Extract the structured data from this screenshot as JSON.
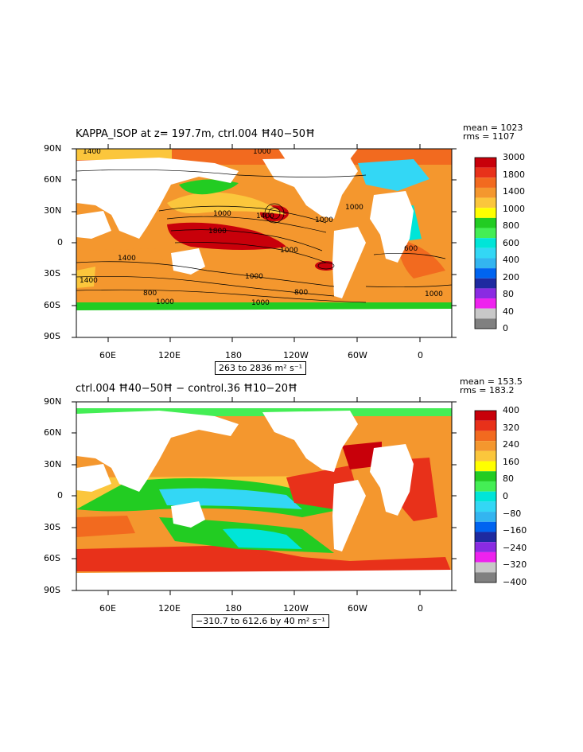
{
  "panels": [
    {
      "title": "KAPPA_ISOP at z= 197.7m, ctrl.004 Ħ40−50Ħ",
      "stats": {
        "mean": "mean = 1023",
        "rms": "rms = 1107"
      },
      "range_label": "263 to 2836 m² s⁻¹",
      "colorbar": {
        "labels": [
          "3000",
          "1800",
          "1400",
          "1000",
          "800",
          "600",
          "400",
          "200",
          "80",
          "40",
          "0"
        ],
        "colors": [
          "#c8000a",
          "#e8311a",
          "#f26a1f",
          "#f4972e",
          "#fbc63c",
          "#ffff00",
          "#22cc22",
          "#44ee55",
          "#00e5d8",
          "#33d7f5",
          "#33b5f0",
          "#0064f0",
          "#1e2aa0",
          "#8a2be2",
          "#ee22ee",
          "#c8c8c8",
          "#808080"
        ]
      }
    },
    {
      "title": "ctrl.004 Ħ40−50Ħ − control.36 Ħ10−20Ħ",
      "stats": {
        "mean": "mean = 153.5",
        "rms": "rms = 183.2"
      },
      "range_label": "−310.7 to 612.6 by 40 m² s⁻¹",
      "colorbar": {
        "labels": [
          "400",
          "320",
          "240",
          "160",
          "80",
          "0",
          "−80",
          "−160",
          "−240",
          "−320",
          "−400"
        ],
        "colors": [
          "#c8000a",
          "#e8311a",
          "#f26a1f",
          "#f4972e",
          "#fbc63c",
          "#ffff00",
          "#22cc22",
          "#44ee55",
          "#00e5d8",
          "#33d7f5",
          "#33b5f0",
          "#0064f0",
          "#1e2aa0",
          "#8a2be2",
          "#ee22ee",
          "#c8c8c8",
          "#808080"
        ]
      }
    }
  ],
  "axes": {
    "lat_labels": [
      "90N",
      "60N",
      "30N",
      "0",
      "30S",
      "60S",
      "90S"
    ],
    "lon_labels": [
      "60E",
      "120E",
      "180",
      "120W",
      "60W",
      "0"
    ]
  },
  "contour_labels": [
    "1400",
    "1000",
    "1400",
    "1800",
    "1400",
    "1000",
    "1000",
    "1000",
    "1000",
    "600",
    "1400",
    "800",
    "1000",
    "800",
    "1000",
    "1000",
    "1000"
  ]
}
